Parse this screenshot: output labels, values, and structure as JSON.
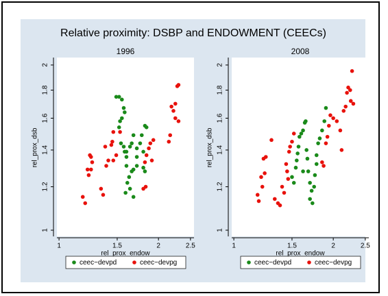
{
  "title": "Relative proximity: DSBP and ENDOWMENT (CEECs)",
  "chart_data": [
    {
      "type": "scatter",
      "title": "1996",
      "xlabel": "rel_prox_endow",
      "ylabel": "rel_prox_dsb",
      "xscale": "log",
      "yscale": "log",
      "xlim": [
        0.99,
        2.55
      ],
      "ylim": [
        0.98,
        2.04
      ],
      "xticks": [
        1,
        1.5,
        2,
        2.5
      ],
      "yticks": [
        1,
        1.2,
        1.4,
        1.6,
        1.8,
        2
      ],
      "legend": "bottom",
      "series": [
        {
          "name": "ceec−devpd",
          "color": "#1a8a1a",
          "x": [
            1.49,
            1.52,
            1.55,
            1.57,
            1.58,
            1.53,
            1.55,
            1.52,
            1.54,
            1.57,
            1.58,
            1.6,
            1.6,
            1.64,
            1.66,
            1.68,
            1.72,
            1.76,
            1.78,
            1.82,
            1.84,
            1.8,
            1.72,
            1.68,
            1.66,
            1.63,
            1.61,
            1.59,
            1.64,
            1.68,
            1.6,
            1.72,
            1.8,
            1.82
          ],
          "values": [
            1.75,
            1.75,
            1.73,
            1.67,
            1.64,
            1.58,
            1.6,
            1.54,
            1.44,
            1.42,
            1.39,
            1.39,
            1.36,
            1.42,
            1.44,
            1.49,
            1.41,
            1.44,
            1.49,
            1.55,
            1.54,
            1.39,
            1.31,
            1.29,
            1.28,
            1.25,
            1.22,
            1.17,
            1.19,
            1.15,
            1.31,
            1.36,
            1.3,
            1.28
          ]
        },
        {
          "name": "ceec−devpg",
          "color": "#e8120c",
          "x": [
            1.18,
            1.2,
            1.23,
            1.25,
            1.22,
            1.24,
            1.26,
            1.25,
            1.34,
            1.36,
            1.39,
            1.41,
            1.38,
            1.44,
            1.45,
            1.46,
            1.49,
            1.53,
            1.46,
            1.8,
            1.83,
            1.82,
            1.84,
            1.87,
            1.89,
            1.91,
            1.93,
            2.19,
            2.22,
            2.25,
            2.28,
            2.3,
            2.3,
            2.25,
            2.15,
            2.17
          ],
          "values": [
            1.15,
            1.12,
            1.26,
            1.29,
            1.29,
            1.37,
            1.33,
            1.36,
            1.19,
            1.16,
            1.31,
            1.34,
            1.42,
            1.43,
            1.45,
            1.34,
            1.37,
            1.51,
            1.51,
            1.19,
            1.2,
            1.33,
            1.37,
            1.41,
            1.44,
            1.34,
            1.46,
            1.68,
            1.65,
            1.7,
            1.83,
            1.84,
            1.58,
            1.6,
            1.45,
            1.49
          ]
        }
      ]
    },
    {
      "type": "scatter",
      "title": "2008",
      "xlabel": "rel_prox_endow",
      "ylabel": "rel_prox_dsb",
      "xscale": "log",
      "yscale": "log",
      "xlim": [
        0.99,
        2.55
      ],
      "ylim": [
        0.98,
        2.04
      ],
      "xticks": [
        1,
        1.5,
        2,
        2.5
      ],
      "yticks": [
        1,
        1.2,
        1.4,
        1.6,
        1.8,
        2
      ],
      "legend": "bottom",
      "series": [
        {
          "name": "ceec−devpd",
          "color": "#1a8a1a",
          "x": [
            1.5,
            1.52,
            1.54,
            1.55,
            1.56,
            1.57,
            1.58,
            1.6,
            1.62,
            1.64,
            1.66,
            1.67,
            1.68,
            1.7,
            1.72,
            1.7,
            1.73,
            1.75,
            1.76,
            1.78,
            1.8,
            1.82,
            1.85,
            1.88,
            1.9,
            1.62,
            1.65,
            1.78
          ],
          "values": [
            1.25,
            1.22,
            1.3,
            1.34,
            1.38,
            1.42,
            1.48,
            1.5,
            1.52,
            1.57,
            1.4,
            1.35,
            1.28,
            1.22,
            1.18,
            1.14,
            1.12,
            1.2,
            1.26,
            1.32,
            1.44,
            1.47,
            1.52,
            1.58,
            1.67,
            1.28,
            1.58,
            1.37
          ]
        },
        {
          "name": "ceec−devpg",
          "color": "#e8120c",
          "x": [
            1.18,
            1.19,
            1.22,
            1.21,
            1.24,
            1.25,
            1.23,
            1.3,
            1.33,
            1.36,
            1.38,
            1.4,
            1.42,
            1.44,
            1.45,
            1.47,
            1.48,
            1.5,
            1.52,
            1.46,
            1.85,
            1.87,
            1.9,
            1.92,
            1.94,
            1.96,
            2.0,
            2.05,
            2.1,
            2.15,
            2.18,
            2.2,
            2.22,
            2.25,
            2.28,
            2.3,
            2.26,
            2.12
          ],
          "values": [
            1.16,
            1.13,
            1.2,
            1.25,
            1.27,
            1.36,
            1.35,
            1.46,
            1.14,
            1.12,
            1.11,
            1.2,
            1.17,
            1.32,
            1.28,
            1.39,
            1.42,
            1.45,
            1.5,
            1.24,
            1.33,
            1.31,
            1.44,
            1.48,
            1.55,
            1.62,
            1.6,
            1.58,
            1.52,
            1.65,
            1.68,
            1.78,
            1.82,
            1.8,
            1.95,
            1.7,
            1.72,
            1.4
          ]
        }
      ]
    }
  ]
}
